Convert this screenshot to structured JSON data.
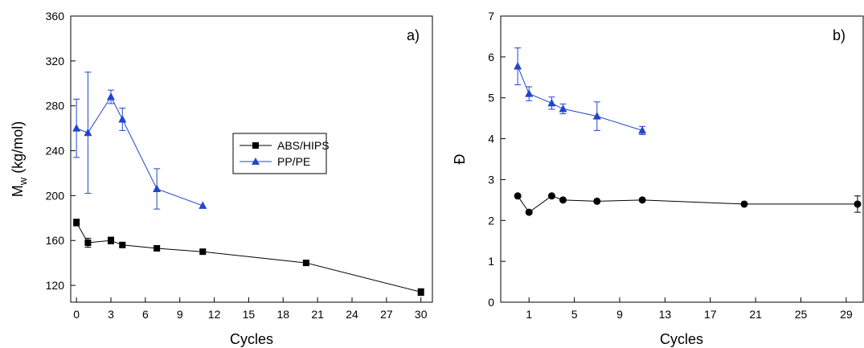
{
  "chart_data": [
    {
      "type": "line",
      "panel_label": "a)",
      "xlabel": "Cycles",
      "ylabel_main": "M",
      "ylabel_sub": "w",
      "ylabel_rest": " (kg/mol)",
      "xlim": [
        -0.5,
        31
      ],
      "ylim": [
        105,
        360
      ],
      "xticks": [
        0,
        3,
        6,
        9,
        12,
        15,
        18,
        21,
        24,
        27,
        30
      ],
      "yticks": [
        120,
        160,
        200,
        240,
        280,
        320,
        360
      ],
      "legend_position": "center",
      "series": [
        {
          "name": "ABS/HIPS",
          "color": "#000000",
          "marker": "square",
          "x": [
            0,
            1,
            3,
            4,
            7,
            11,
            20,
            30
          ],
          "y": [
            176,
            158,
            160,
            156,
            153,
            150,
            140,
            114
          ],
          "err": [
            3,
            4,
            3,
            2,
            2,
            2,
            2,
            3
          ]
        },
        {
          "name": "PP/PE",
          "color": "#2244cc",
          "marker": "triangle",
          "x": [
            0,
            1,
            3,
            4,
            7,
            11
          ],
          "y": [
            260,
            256,
            288,
            268,
            206,
            191
          ],
          "err": [
            26,
            54,
            6,
            10,
            18,
            0
          ]
        }
      ]
    },
    {
      "type": "line",
      "panel_label": "b)",
      "xlabel": "Cycles",
      "ylabel": "Đ",
      "xlim": [
        -1.5,
        30.5
      ],
      "ylim": [
        0,
        7
      ],
      "xticks": [
        1,
        5,
        9,
        13,
        17,
        21,
        25,
        29
      ],
      "yticks": [
        0,
        1,
        2,
        3,
        4,
        5,
        6,
        7
      ],
      "series": [
        {
          "name": "ABS/HIPS",
          "color": "#000000",
          "marker": "circle",
          "x": [
            0,
            1,
            3,
            4,
            7,
            11,
            20,
            30
          ],
          "y": [
            2.6,
            2.2,
            2.6,
            2.5,
            2.47,
            2.5,
            2.4,
            2.4
          ],
          "err": [
            0,
            0,
            0,
            0,
            0,
            0,
            0,
            0.2
          ]
        },
        {
          "name": "PP/PE",
          "color": "#2244cc",
          "marker": "triangle",
          "x": [
            0,
            1,
            3,
            4,
            7,
            11
          ],
          "y": [
            5.77,
            5.1,
            4.87,
            4.73,
            4.55,
            4.2
          ],
          "err": [
            0.45,
            0.17,
            0.15,
            0.12,
            0.35,
            0.1
          ]
        }
      ]
    }
  ]
}
